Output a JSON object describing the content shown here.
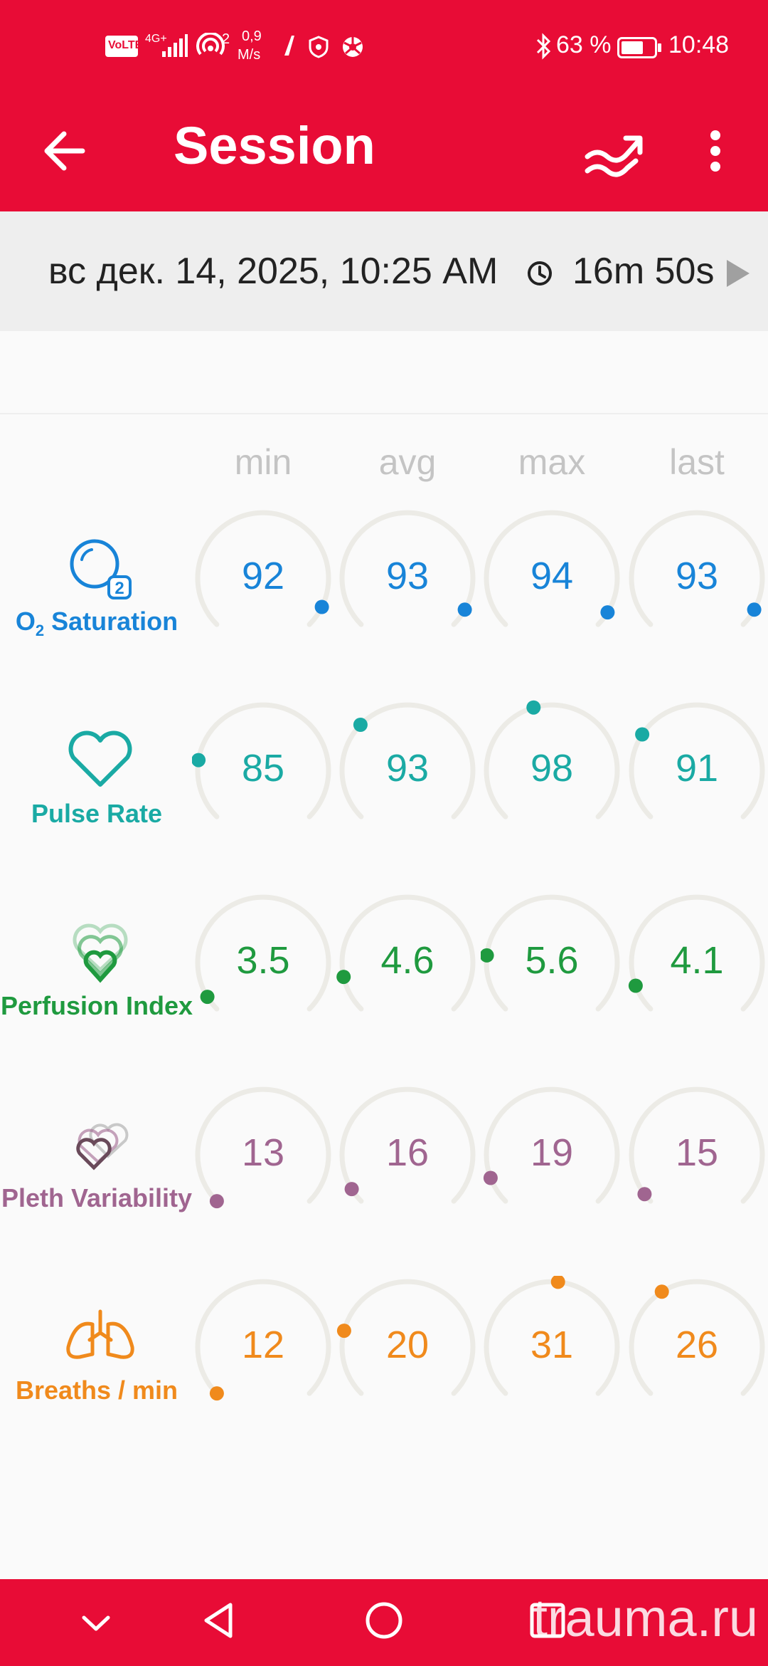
{
  "status_bar": {
    "network_badge": "VoLTE",
    "signal_label": "4G+",
    "hotspot_count": "2",
    "speed_value": "0,9",
    "speed_unit": "M/s",
    "battery_percent": "63 %",
    "time": "10:48"
  },
  "app_bar": {
    "title": "Session",
    "back_icon": "arrow-back-icon",
    "chart_icon": "trend-chart-icon",
    "menu_icon": "more-vert-icon"
  },
  "session": {
    "date": "вс дек. 14, 2025, 10:25 AM",
    "duration": "16m 50s"
  },
  "columns": [
    "min",
    "avg",
    "max",
    "last"
  ],
  "metrics": [
    {
      "id": "spo2",
      "label": "Saturation",
      "label_prefix": "O",
      "label_sub": "2",
      "color": "#1884d8",
      "icon": "o2-bubble-icon",
      "values": [
        "92",
        "93",
        "94",
        "93"
      ],
      "levels": [
        0.93,
        0.94,
        0.95,
        0.94
      ]
    },
    {
      "id": "pulse",
      "label": "Pulse Rate",
      "color": "#1aaaa4",
      "icon": "heart-outline-icon",
      "values": [
        "85",
        "93",
        "98",
        "91"
      ],
      "levels": [
        0.2,
        0.33,
        0.44,
        0.29
      ]
    },
    {
      "id": "pi",
      "label": "Perfusion Index",
      "color": "#1f9a3f",
      "icon": "stacked-hearts-icon",
      "values": [
        "3.5",
        "4.6",
        "5.6",
        "4.1"
      ],
      "levels": [
        0.05,
        0.12,
        0.19,
        0.09
      ]
    },
    {
      "id": "pvi",
      "label": "Pleth Variability",
      "color": "#a06590",
      "icon": "layered-hearts-icon",
      "values": [
        "13",
        "16",
        "19",
        "15"
      ],
      "levels": [
        0.0,
        0.05,
        0.09,
        0.03
      ]
    },
    {
      "id": "resp",
      "label": "Breaths / min",
      "color": "#f08a1c",
      "icon": "lungs-icon",
      "values": [
        "12",
        "20",
        "31",
        "26"
      ],
      "levels": [
        0.0,
        0.22,
        0.52,
        0.38
      ]
    }
  ],
  "nav_bar": {
    "watermark": "trauma.ru"
  }
}
